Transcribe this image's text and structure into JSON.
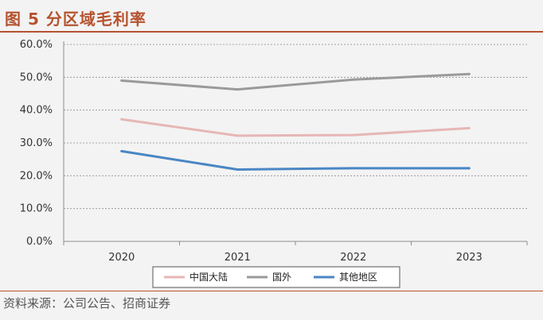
{
  "figure": {
    "title": "图 5  分区域毛利率",
    "source": "资料来源：公司公告、招商证券"
  },
  "chart_data": {
    "type": "line",
    "title": "分区域毛利率",
    "xlabel": "",
    "ylabel": "",
    "categories": [
      "2020",
      "2021",
      "2022",
      "2023"
    ],
    "ylim": [
      0,
      60
    ],
    "yticks": [
      "0.0%",
      "10.0%",
      "20.0%",
      "30.0%",
      "40.0%",
      "50.0%",
      "60.0%"
    ],
    "grid": true,
    "legend_position": "bottom",
    "series": [
      {
        "name": "中国大陆",
        "color": "#e7b6b6",
        "values": [
          37.2,
          32.2,
          32.4,
          34.5
        ]
      },
      {
        "name": "国外",
        "color": "#9a9a9a",
        "values": [
          49.0,
          46.3,
          49.3,
          51.0
        ]
      },
      {
        "name": "其他地区",
        "color": "#4a86c4",
        "values": [
          27.5,
          21.9,
          22.3,
          22.3
        ]
      }
    ]
  }
}
